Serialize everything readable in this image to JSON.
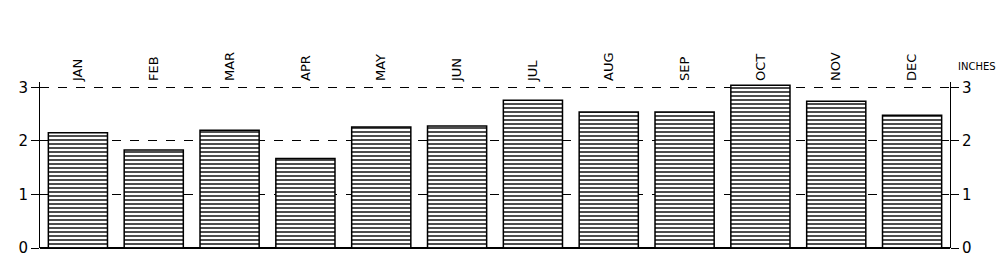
{
  "chart_data": {
    "type": "bar",
    "y_label": "INCHES",
    "categories": [
      "JAN",
      "FEB",
      "MAR",
      "APR",
      "MAY",
      "JUN",
      "JUL",
      "AUG",
      "SEP",
      "OCT",
      "NOV",
      "DEC"
    ],
    "values": [
      2.15,
      1.83,
      2.2,
      1.67,
      2.26,
      2.28,
      2.76,
      2.54,
      2.54,
      3.04,
      2.74,
      2.48
    ],
    "color": "#000000",
    "ylim": [
      0,
      3.1
    ],
    "yticks": [
      0,
      1,
      2,
      3
    ],
    "grid": true
  }
}
